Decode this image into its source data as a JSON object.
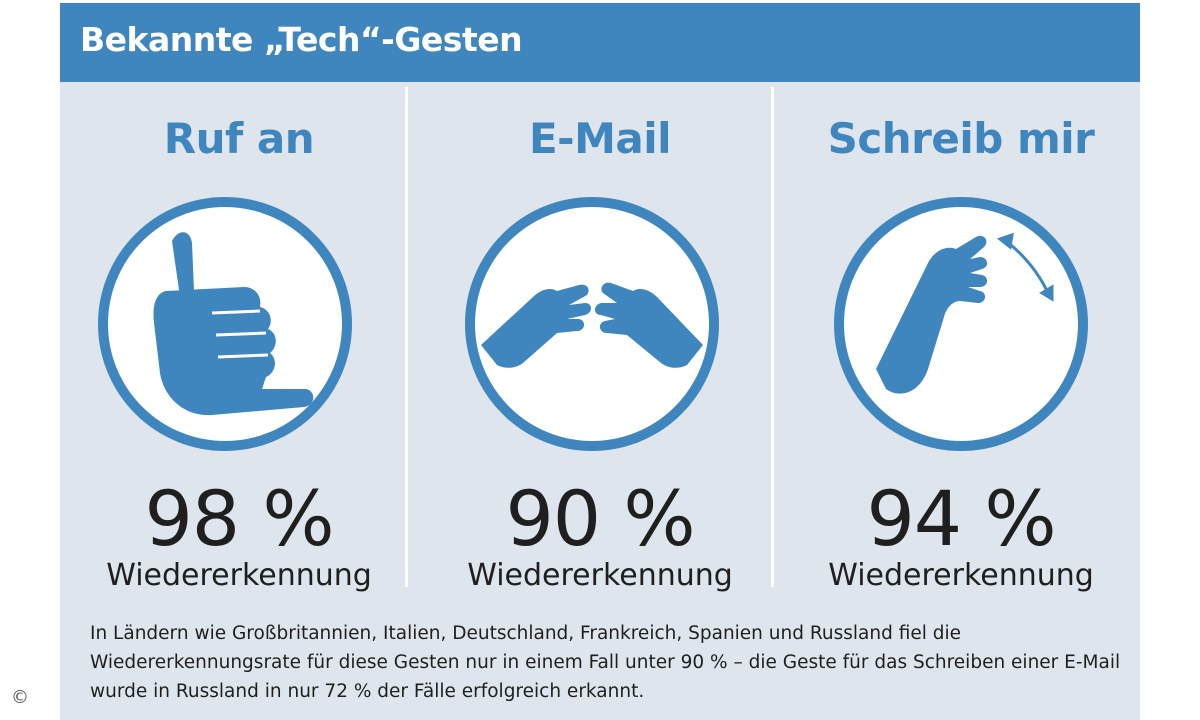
{
  "header": {
    "title": "Bekannte „Tech“-Gesten"
  },
  "colors": {
    "accent": "#3f86bf",
    "background": "#dfe5ec",
    "text": "#1f1f1f"
  },
  "gestures": [
    {
      "title": "Ruf an",
      "icon": "phone-call-hand-gesture-icon",
      "percent": "98 %",
      "label": "Wiedererkennung"
    },
    {
      "title": "E-Mail",
      "icon": "email-hands-gesture-icon",
      "percent": "90 %",
      "label": "Wiedererkennung"
    },
    {
      "title": "Schreib mir",
      "icon": "text-me-hand-gesture-icon",
      "percent": "94 %",
      "label": "Wiedererkennung"
    }
  ],
  "footnote": "In Ländern wie Großbritannien, Italien, Deutschland, Frankreich, Spanien und Russland fiel die Wiedererkennungsrate für diese Gesten nur in einem Fall unter 90 % – die Geste für das Schreiben einer E-Mail wurde in Russland in nur 72 % der Fälle erfolgreich erkannt.",
  "copyright": "©"
}
